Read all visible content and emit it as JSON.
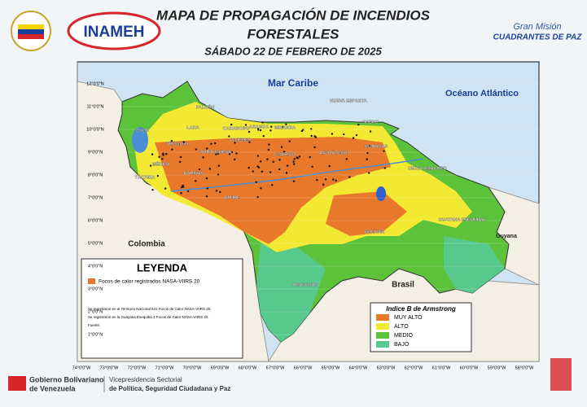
{
  "header": {
    "title_line1": "MAPA DE PROPAGACIÓN DE INCENDIOS",
    "title_line2": "FORESTALES",
    "date": "SÁBADO 22 DE FEBRERO DE 2025"
  },
  "logos": {
    "left_agency": "INAMEH",
    "right_line1": "Gran Misión",
    "right_line2": "CUADRANTES DE PAZ"
  },
  "map": {
    "latitude_labels": [
      "12°0'0\"N",
      "11°0'0\"N",
      "10°0'0\"N",
      "9°0'0\"N",
      "8°0'0\"N",
      "7°0'0\"N",
      "6°0'0\"N",
      "5°0'0\"N",
      "4°0'0\"N",
      "3°0'0\"N",
      "2°0'0\"N",
      "1°0'0\"N"
    ],
    "longitude_labels": [
      "74°0'0\"W",
      "73°0'0\"W",
      "72°0'0\"W",
      "71°0'0\"W",
      "70°0'0\"W",
      "69°0'0\"W",
      "68°0'0\"W",
      "67°0'0\"W",
      "66°0'0\"W",
      "65°0'0\"W",
      "64°0'0\"W",
      "63°0'0\"W",
      "62°0'0\"W",
      "61°0'0\"W",
      "60°0'0\"W",
      "59°0'0\"W",
      "58°0'0\"W"
    ],
    "seas": [
      "Mar Caribe",
      "Océano Atlántico"
    ],
    "countries": [
      "Colombia",
      "Brasil",
      "Guyana"
    ],
    "states": [
      "FALCÓN",
      "LARA",
      "ZULIA",
      "TRUJILLO",
      "MÉRIDA",
      "TÁCHIRA",
      "BARINAS",
      "PORTUGUESA",
      "COJEDES",
      "CARABOBO",
      "ARAGUA",
      "MIRANDA",
      "GUÁRICO",
      "ANZOÁTEGUI",
      "MONAGAS",
      "SUCRE",
      "NUEVA ESPARTA",
      "DELTA AMACURO",
      "BOLÍVAR",
      "AMAZONAS",
      "APURE",
      "GUAYANA ESEQUIBA"
    ]
  },
  "legend": {
    "title": "LEYENDA",
    "hotspots": "Focos de calor registrados NASA-VIIRS 20",
    "notes": [
      "Se registraron en el Territorio Nacional 541 Focos de Calor NASA-VIIRS 20.",
      "Se registraron en la Guayana Esequiba 3 Focos de Calor NASA-VIIRS 20.",
      "Fuente:"
    ]
  },
  "armstrong": {
    "title": "Indice B de Armstrong",
    "levels": [
      {
        "label": "MUY ALTO",
        "color": "#e8782a"
      },
      {
        "label": "ALTO",
        "color": "#f3e832"
      },
      {
        "label": "MEDIO",
        "color": "#5cc23a"
      },
      {
        "label": "BAJO",
        "color": "#58c98c"
      }
    ]
  },
  "footer": {
    "gov_line1": "Gobierno Bolivariano",
    "gov_line2": "de Venezuela",
    "vp_line1": "Vicepresidencia Sectorial",
    "vp_line2": "de Política, Seguridad Ciudadana y Paz"
  }
}
